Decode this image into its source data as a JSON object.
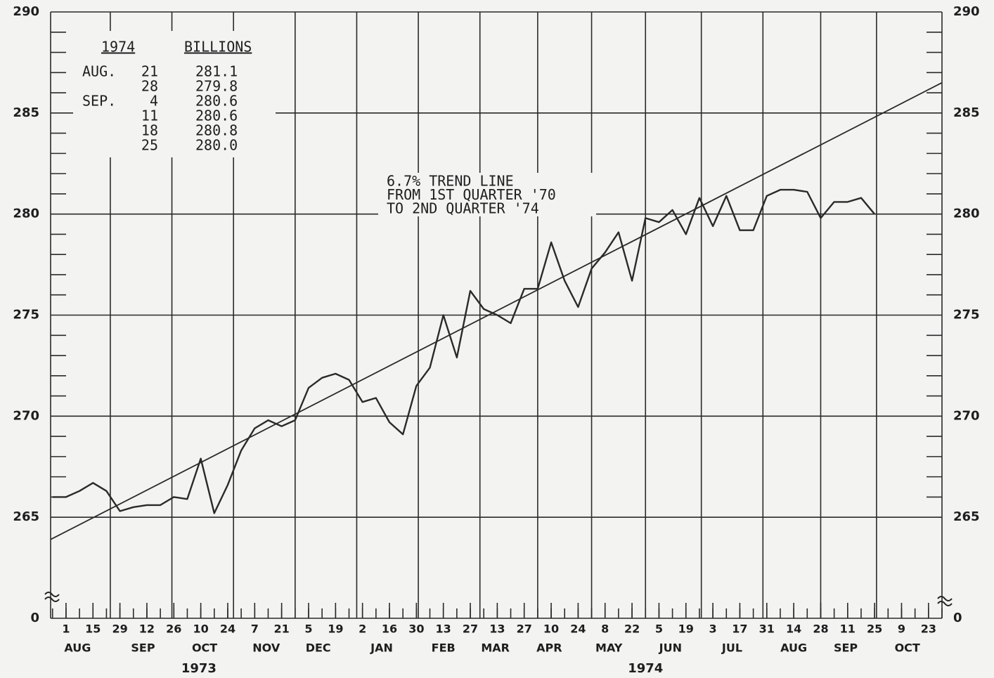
{
  "chart_data": {
    "type": "line",
    "annotation": [
      "6.7% TREND LINE",
      "FROM 1ST QUARTER '70",
      "TO 2ND QUARTER '74"
    ],
    "inset": {
      "header": [
        "1974",
        "BILLIONS"
      ],
      "rows": [
        [
          "AUG.",
          "21",
          "281.1"
        ],
        [
          null,
          "28",
          "279.8"
        ],
        [
          "SEP.",
          "4",
          "280.6"
        ],
        [
          null,
          "11",
          "280.6"
        ],
        [
          null,
          "18",
          "280.8"
        ],
        [
          null,
          "25",
          "280.0"
        ]
      ]
    },
    "x": [
      "1973-07-25",
      "1973-08-01",
      "1973-08-08",
      "1973-08-15",
      "1973-08-22",
      "1973-08-29",
      "1973-09-05",
      "1973-09-12",
      "1973-09-19",
      "1973-09-26",
      "1973-10-03",
      "1973-10-10",
      "1973-10-17",
      "1973-10-24",
      "1973-10-31",
      "1973-11-07",
      "1973-11-14",
      "1973-11-21",
      "1973-11-28",
      "1973-12-05",
      "1973-12-12",
      "1973-12-19",
      "1973-12-26",
      "1974-01-02",
      "1974-01-09",
      "1974-01-16",
      "1974-01-23",
      "1974-01-30",
      "1974-02-06",
      "1974-02-13",
      "1974-02-20",
      "1974-02-27",
      "1974-03-06",
      "1974-03-13",
      "1974-03-20",
      "1974-03-27",
      "1974-04-03",
      "1974-04-10",
      "1974-04-17",
      "1974-04-24",
      "1974-05-01",
      "1974-05-08",
      "1974-05-15",
      "1974-05-22",
      "1974-05-29",
      "1974-06-05",
      "1974-06-12",
      "1974-06-19",
      "1974-06-26",
      "1974-07-03",
      "1974-07-10",
      "1974-07-17",
      "1974-07-24",
      "1974-07-31",
      "1974-08-07",
      "1974-08-14",
      "1974-08-21",
      "1974-08-28",
      "1974-09-04",
      "1974-09-11",
      "1974-09-18",
      "1974-09-25"
    ],
    "values": [
      266.0,
      266.0,
      266.3,
      266.7,
      266.3,
      265.3,
      265.5,
      265.6,
      265.6,
      266.0,
      265.9,
      267.9,
      265.2,
      266.6,
      268.3,
      269.4,
      269.8,
      269.5,
      269.8,
      271.4,
      271.9,
      272.1,
      271.8,
      270.7,
      270.9,
      269.7,
      269.1,
      271.5,
      272.4,
      275.0,
      272.9,
      276.2,
      275.3,
      275.0,
      274.6,
      276.3,
      276.3,
      278.6,
      276.7,
      275.4,
      277.3,
      278.1,
      279.1,
      276.7,
      279.8,
      279.6,
      280.2,
      279.0,
      280.8,
      279.4,
      280.9,
      279.2,
      279.2,
      280.9,
      281.2,
      281.2,
      281.1,
      279.8,
      280.6,
      280.6,
      280.8,
      280.0
    ],
    "color": "#2a2a2a",
    "trend": {
      "x": [
        "1973-07-24",
        "1974-10-30"
      ],
      "values": [
        263.9,
        286.5
      ]
    },
    "xlim": [
      "1973-07-24",
      "1974-10-30"
    ],
    "xticks": [
      {
        "value": "1973-08-01",
        "label": "1"
      },
      {
        "value": "1973-08-15",
        "label": "15"
      },
      {
        "value": "1973-08-29",
        "label": "29"
      },
      {
        "value": "1973-09-12",
        "label": "12"
      },
      {
        "value": "1973-09-26",
        "label": "26"
      },
      {
        "value": "1973-10-10",
        "label": "10"
      },
      {
        "value": "1973-10-24",
        "label": "24"
      },
      {
        "value": "1973-11-07",
        "label": "7"
      },
      {
        "value": "1973-11-21",
        "label": "21"
      },
      {
        "value": "1973-12-05",
        "label": "5"
      },
      {
        "value": "1973-12-19",
        "label": "19"
      },
      {
        "value": "1974-01-02",
        "label": "2"
      },
      {
        "value": "1974-01-16",
        "label": "16"
      },
      {
        "value": "1974-01-30",
        "label": "30"
      },
      {
        "value": "1974-02-13",
        "label": "13"
      },
      {
        "value": "1974-02-27",
        "label": "27"
      },
      {
        "value": "1974-03-13",
        "label": "13"
      },
      {
        "value": "1974-03-27",
        "label": "27"
      },
      {
        "value": "1974-04-10",
        "label": "10"
      },
      {
        "value": "1974-04-24",
        "label": "24"
      },
      {
        "value": "1974-05-08",
        "label": "8"
      },
      {
        "value": "1974-05-22",
        "label": "22"
      },
      {
        "value": "1974-06-05",
        "label": "5"
      },
      {
        "value": "1974-06-19",
        "label": "19"
      },
      {
        "value": "1974-07-03",
        "label": "3"
      },
      {
        "value": "1974-07-17",
        "label": "17"
      },
      {
        "value": "1974-07-31",
        "label": "31"
      },
      {
        "value": "1974-08-14",
        "label": "14"
      },
      {
        "value": "1974-08-28",
        "label": "28"
      },
      {
        "value": "1974-09-11",
        "label": "11"
      },
      {
        "value": "1974-09-25",
        "label": "25"
      },
      {
        "value": "1974-10-09",
        "label": "9"
      },
      {
        "value": "1974-10-23",
        "label": "23"
      }
    ],
    "month_labels": [
      {
        "value": "1973-08-07",
        "label": "AUG"
      },
      {
        "value": "1973-09-10",
        "label": "SEP"
      },
      {
        "value": "1973-10-12",
        "label": "OCT"
      },
      {
        "value": "1973-11-13",
        "label": "NOV"
      },
      {
        "value": "1973-12-10",
        "label": "DEC"
      },
      {
        "value": "1974-01-12",
        "label": "JAN"
      },
      {
        "value": "1974-02-13",
        "label": "FEB"
      },
      {
        "value": "1974-03-12",
        "label": "MAR"
      },
      {
        "value": "1974-04-09",
        "label": "APR"
      },
      {
        "value": "1974-05-10",
        "label": "MAY"
      },
      {
        "value": "1974-06-11",
        "label": "JUN"
      },
      {
        "value": "1974-07-13",
        "label": "JUL"
      },
      {
        "value": "1974-08-14",
        "label": "AUG"
      },
      {
        "value": "1974-09-10",
        "label": "SEP"
      },
      {
        "value": "1974-10-12",
        "label": "OCT"
      }
    ],
    "year_labels": [
      {
        "value": "1973-10-09",
        "label": "1973"
      },
      {
        "value": "1974-05-29",
        "label": "1974"
      }
    ],
    "xgrid": [
      "1973-08-24",
      "1973-09-25",
      "1973-10-27",
      "1973-11-28",
      "1973-12-30",
      "1974-01-31",
      "1974-03-04",
      "1974-04-03",
      "1974-05-01",
      "1974-05-29",
      "1974-06-27",
      "1974-07-29",
      "1974-08-28",
      "1974-09-26"
    ],
    "ylim": [
      0,
      290
    ],
    "y_break": [
      0,
      260
    ],
    "yticks": [
      0,
      265,
      270,
      275,
      280,
      285,
      290
    ],
    "grid": true
  }
}
